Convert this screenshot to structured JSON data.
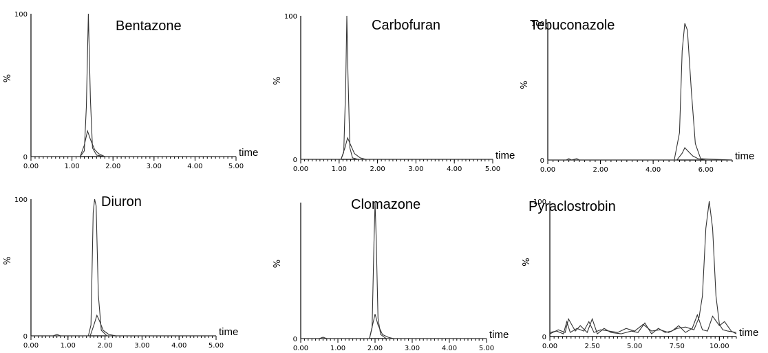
{
  "chart_data": [
    {
      "type": "line",
      "title": "Bentazone",
      "ylabel": "%",
      "xlabel": "time",
      "xlim": [
        0,
        5
      ],
      "ylim": [
        0,
        100
      ],
      "xticks": [
        0,
        1,
        2,
        3,
        4,
        5
      ],
      "xtick_labels": [
        "0.00",
        "1.00",
        "2.00",
        "3.00",
        "4.00",
        "5.00"
      ],
      "ytick_labels": [
        "0",
        "100"
      ],
      "series": [
        {
          "x": [
            0,
            1.2,
            1.3,
            1.35,
            1.4,
            1.45,
            1.5,
            1.6,
            1.8,
            5
          ],
          "y": [
            0,
            0,
            4,
            35,
            100,
            40,
            6,
            1,
            0,
            0
          ]
        },
        {
          "x": [
            0,
            1.2,
            1.3,
            1.38,
            1.45,
            1.55,
            1.65,
            1.8,
            5
          ],
          "y": [
            0,
            0,
            8,
            18,
            12,
            5,
            2,
            0,
            0
          ]
        }
      ]
    },
    {
      "type": "line",
      "title": "Carbofuran",
      "ylabel": "%",
      "xlabel": "time",
      "xlim": [
        0,
        5
      ],
      "ylim": [
        0,
        100
      ],
      "xticks": [
        0,
        1,
        2,
        3,
        4,
        5
      ],
      "xtick_labels": [
        "0.00",
        "1.00",
        "2.00",
        "3.00",
        "4.00",
        "5.00"
      ],
      "ytick_labels": [
        "0",
        "100"
      ],
      "series": [
        {
          "x": [
            0,
            1.05,
            1.12,
            1.17,
            1.2,
            1.23,
            1.28,
            1.35,
            1.5,
            5
          ],
          "y": [
            0,
            0,
            5,
            50,
            100,
            60,
            8,
            1,
            0,
            0
          ]
        },
        {
          "x": [
            0,
            1.05,
            1.15,
            1.22,
            1.3,
            1.4,
            1.55,
            1.7,
            5
          ],
          "y": [
            0,
            0,
            8,
            15,
            10,
            4,
            1,
            0,
            0
          ]
        }
      ]
    },
    {
      "type": "line",
      "title": "Tebuconazole",
      "ylabel": "%",
      "xlabel": "time",
      "xlim": [
        0,
        7
      ],
      "ylim": [
        0,
        100
      ],
      "xticks": [
        0,
        2,
        4,
        6
      ],
      "xtick_labels": [
        "0.00",
        "2.00",
        "4.00",
        "6.00"
      ],
      "ytick_labels": [
        "0",
        "100"
      ],
      "series": [
        {
          "x": [
            0,
            0.7,
            0.8,
            0.9,
            1.1,
            1.2,
            4.8,
            5.0,
            5.1,
            5.2,
            5.3,
            5.45,
            5.6,
            5.8,
            7
          ],
          "y": [
            0,
            0,
            1,
            0,
            1,
            0,
            0,
            20,
            80,
            100,
            95,
            50,
            12,
            1,
            0
          ]
        },
        {
          "x": [
            0,
            4.9,
            5.1,
            5.2,
            5.3,
            5.5,
            5.7,
            6.0,
            7
          ],
          "y": [
            0,
            0,
            5,
            9,
            7,
            3,
            1,
            0,
            0
          ]
        }
      ]
    },
    {
      "type": "line",
      "title": "Diuron",
      "ylabel": "%",
      "xlabel": "time",
      "xlim": [
        0,
        5
      ],
      "ylim": [
        0,
        100
      ],
      "xticks": [
        0,
        1,
        2,
        3,
        4,
        5
      ],
      "xtick_labels": [
        "0.00",
        "1.00",
        "2.00",
        "3.00",
        "4.00",
        "5.00"
      ],
      "ytick_labels": [
        "0",
        "100"
      ],
      "series": [
        {
          "x": [
            0,
            0.6,
            0.7,
            0.8,
            1.55,
            1.62,
            1.68,
            1.72,
            1.76,
            1.82,
            1.9,
            2.05,
            5
          ],
          "y": [
            0,
            0,
            1,
            0,
            0,
            8,
            90,
            100,
            95,
            30,
            4,
            0,
            0
          ]
        },
        {
          "x": [
            0,
            1.6,
            1.7,
            1.78,
            1.85,
            1.95,
            2.1,
            2.3,
            5
          ],
          "y": [
            0,
            0,
            8,
            15,
            11,
            4,
            1,
            0,
            0
          ]
        }
      ]
    },
    {
      "type": "line",
      "title": "Clomazone",
      "ylabel": "%",
      "xlabel": "time",
      "xlim": [
        0,
        5
      ],
      "ylim": [
        0,
        100
      ],
      "xticks": [
        0,
        1,
        2,
        3,
        4,
        5
      ],
      "xtick_labels": [
        "0.00",
        "1.00",
        "2.00",
        "3.00",
        "4.00",
        "5.00"
      ],
      "ytick_labels": [
        "0"
      ],
      "series": [
        {
          "x": [
            0,
            0.5,
            0.6,
            0.7,
            1.85,
            1.92,
            1.97,
            2.0,
            2.03,
            2.08,
            2.15,
            2.3,
            5
          ],
          "y": [
            0,
            0,
            1,
            0,
            0,
            8,
            70,
            100,
            75,
            15,
            3,
            0,
            0
          ]
        },
        {
          "x": [
            0,
            1.85,
            1.95,
            2.0,
            2.08,
            2.2,
            2.35,
            2.5,
            5
          ],
          "y": [
            0,
            0,
            12,
            18,
            10,
            3,
            1,
            0,
            0
          ]
        }
      ]
    },
    {
      "type": "line",
      "title": "Pyraclostrobin",
      "ylabel": "%",
      "xlabel": "time",
      "xlim": [
        0,
        11
      ],
      "ylim": [
        0,
        100
      ],
      "xticks": [
        0,
        2.5,
        5,
        7.5,
        10
      ],
      "xtick_labels": [
        "0.00",
        "2.50",
        "5.00",
        "7.50",
        "10.00"
      ],
      "ytick_labels": [
        "0",
        "100"
      ],
      "series": [
        {
          "x": [
            0,
            0.4,
            0.8,
            1.0,
            1.2,
            1.6,
            2.0,
            2.3,
            2.6,
            3.0,
            3.5,
            4.0,
            4.5,
            5.0,
            5.5,
            6.0,
            6.5,
            7.0,
            7.5,
            8.0,
            8.5,
            8.8,
            9.0,
            9.2,
            9.4,
            9.6,
            9.8,
            10.0,
            10.2,
            10.5,
            11
          ],
          "y": [
            3,
            4,
            2,
            11,
            3,
            6,
            4,
            11,
            3,
            5,
            4,
            3,
            6,
            4,
            9,
            4,
            5,
            3,
            6,
            7,
            5,
            14,
            30,
            80,
            100,
            80,
            30,
            9,
            5,
            4,
            3
          ]
        },
        {
          "x": [
            0,
            0.5,
            0.9,
            1.1,
            1.5,
            1.8,
            2.2,
            2.5,
            2.8,
            3.2,
            3.6,
            4.2,
            4.8,
            5.2,
            5.6,
            6.0,
            6.4,
            6.8,
            7.2,
            7.6,
            8.0,
            8.4,
            8.7,
            9.0,
            9.3,
            9.6,
            10.0,
            10.3,
            10.7,
            11
          ],
          "y": [
            2,
            5,
            3,
            13,
            4,
            8,
            3,
            13,
            2,
            6,
            3,
            2,
            4,
            3,
            10,
            2,
            6,
            3,
            4,
            8,
            3,
            6,
            16,
            5,
            4,
            15,
            8,
            11,
            4,
            2
          ]
        }
      ]
    }
  ]
}
